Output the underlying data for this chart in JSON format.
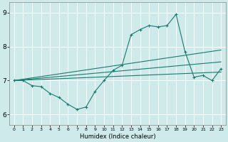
{
  "title": "",
  "xlabel": "Humidex (Indice chaleur)",
  "bg_color": "#ceeaea",
  "grid_color": "#b8d8d8",
  "line_color": "#1a7a6e",
  "xlim": [
    -0.5,
    23.5
  ],
  "ylim": [
    5.7,
    9.3
  ],
  "xticks": [
    0,
    1,
    2,
    3,
    4,
    5,
    6,
    7,
    8,
    9,
    10,
    11,
    12,
    13,
    14,
    15,
    16,
    17,
    18,
    19,
    20,
    21,
    22,
    23
  ],
  "yticks": [
    6,
    7,
    8,
    9
  ],
  "curve_x": [
    0,
    1,
    2,
    3,
    4,
    5,
    6,
    7,
    8,
    9,
    10,
    11,
    12,
    13,
    14,
    15,
    16,
    17,
    18,
    19,
    20,
    21,
    22,
    23
  ],
  "curve_y": [
    7.0,
    7.0,
    6.85,
    6.82,
    6.62,
    6.5,
    6.3,
    6.15,
    6.22,
    6.68,
    7.0,
    7.3,
    7.45,
    8.35,
    8.5,
    8.62,
    8.58,
    8.62,
    8.95,
    7.85,
    7.1,
    7.15,
    7.0,
    7.35
  ],
  "line1_x": [
    0,
    23
  ],
  "line1_y": [
    7.0,
    7.9
  ],
  "line2_x": [
    0,
    23
  ],
  "line2_y": [
    7.0,
    7.55
  ],
  "line3_x": [
    0,
    23
  ],
  "line3_y": [
    7.0,
    7.25
  ]
}
